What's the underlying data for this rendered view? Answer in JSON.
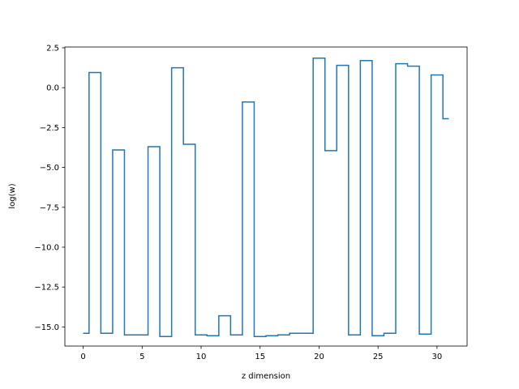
{
  "chart_data": {
    "type": "line",
    "step": "mid",
    "xlabel": "z dimension",
    "ylabel": "log(w)",
    "xlim": [
      -1.55,
      32.55
    ],
    "ylim": [
      -16.2,
      2.55
    ],
    "xticks": [
      0,
      5,
      10,
      15,
      20,
      25,
      30
    ],
    "yticks": [
      2.5,
      0.0,
      -2.5,
      -5.0,
      -7.5,
      -10.0,
      -12.5,
      -15.0
    ],
    "x": [
      0,
      1,
      2,
      3,
      4,
      5,
      6,
      7,
      8,
      9,
      10,
      11,
      12,
      13,
      14,
      15,
      16,
      17,
      18,
      19,
      20,
      21,
      22,
      23,
      24,
      25,
      26,
      27,
      28,
      29,
      30,
      31
    ],
    "series": [
      {
        "values": [
          -15.4,
          0.95,
          -15.4,
          -3.9,
          -15.5,
          -15.5,
          -3.7,
          -15.6,
          1.25,
          -3.55,
          -15.5,
          -15.55,
          -14.3,
          -15.5,
          -0.9,
          -15.6,
          -15.55,
          -15.5,
          -15.4,
          -15.4,
          1.85,
          -3.95,
          1.4,
          -15.5,
          1.7,
          -15.55,
          -15.4,
          1.5,
          1.35,
          -15.45,
          0.8,
          -1.95
        ],
        "color": "#1f77b4"
      }
    ],
    "grid": false,
    "legend": false
  }
}
